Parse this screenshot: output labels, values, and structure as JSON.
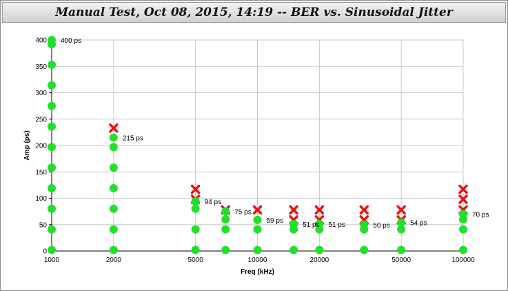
{
  "window": {
    "title": "Manual Test, Oct 08, 2015, 14:19 -- BER vs. Sinusoidal Jitter"
  },
  "colors": {
    "pass": "#22e02a",
    "fail": "#f01010",
    "grid": "#c8c8c8",
    "axis": "#000000"
  },
  "chart_data": {
    "type": "scatter",
    "title": "Manual Test, Oct 08, 2015, 14:19 -- BER vs. Sinusoidal Jitter",
    "xlabel": "Freq (kHz)",
    "ylabel": "Amp (ps)",
    "xscale": "log",
    "xlim": [
      1000,
      100000
    ],
    "ylim": [
      0,
      400
    ],
    "grid": true,
    "x_ticks": [
      1000,
      2000,
      5000,
      10000,
      20000,
      50000,
      100000
    ],
    "y_ticks": [
      0,
      50,
      100,
      150,
      200,
      250,
      300,
      350,
      400
    ],
    "series": [
      {
        "kind": "pass",
        "points": [
          [
            1000,
            2
          ],
          [
            1000,
            41
          ],
          [
            1000,
            80
          ],
          [
            1000,
            119
          ],
          [
            1000,
            158
          ],
          [
            1000,
            197
          ],
          [
            1000,
            236
          ],
          [
            1000,
            275
          ],
          [
            1000,
            314
          ],
          [
            1000,
            353
          ],
          [
            1000,
            392
          ],
          [
            1000,
            400
          ],
          [
            2000,
            2
          ],
          [
            2000,
            41
          ],
          [
            2000,
            80
          ],
          [
            2000,
            119
          ],
          [
            2000,
            158
          ],
          [
            2000,
            197
          ],
          [
            2000,
            215
          ],
          [
            5000,
            2
          ],
          [
            5000,
            41
          ],
          [
            5000,
            80
          ],
          [
            5000,
            94
          ],
          [
            7000,
            2
          ],
          [
            7000,
            41
          ],
          [
            7000,
            60
          ],
          [
            7000,
            75
          ],
          [
            10000,
            2
          ],
          [
            10000,
            41
          ],
          [
            10000,
            59
          ],
          [
            15000,
            2
          ],
          [
            15000,
            41
          ],
          [
            15000,
            51
          ],
          [
            20000,
            2
          ],
          [
            20000,
            41
          ],
          [
            20000,
            51
          ],
          [
            33000,
            2
          ],
          [
            33000,
            41
          ],
          [
            33000,
            50
          ],
          [
            50000,
            2
          ],
          [
            50000,
            41
          ],
          [
            50000,
            54
          ],
          [
            100000,
            2
          ],
          [
            100000,
            41
          ],
          [
            100000,
            60
          ],
          [
            100000,
            70
          ]
        ]
      },
      {
        "kind": "fail",
        "points": [
          [
            2000,
            233
          ],
          [
            5000,
            117
          ],
          [
            5000,
            98
          ],
          [
            7000,
            78
          ],
          [
            10000,
            78
          ],
          [
            15000,
            78
          ],
          [
            15000,
            59
          ],
          [
            20000,
            78
          ],
          [
            20000,
            59
          ],
          [
            33000,
            78
          ],
          [
            33000,
            59
          ],
          [
            50000,
            78
          ],
          [
            50000,
            59
          ],
          [
            100000,
            117
          ],
          [
            100000,
            98
          ],
          [
            100000,
            78
          ]
        ]
      }
    ],
    "annotations": [
      {
        "x": 1000,
        "y": 400,
        "text": "400 ps"
      },
      {
        "x": 2000,
        "y": 215,
        "text": "215 ps"
      },
      {
        "x": 5000,
        "y": 94,
        "text": "94 ps"
      },
      {
        "x": 7000,
        "y": 75,
        "text": "75 ps"
      },
      {
        "x": 10000,
        "y": 59,
        "text": "59 ps"
      },
      {
        "x": 15000,
        "y": 51,
        "text": "51 ps"
      },
      {
        "x": 20000,
        "y": 51,
        "text": "51 ps"
      },
      {
        "x": 33000,
        "y": 50,
        "text": "50 ps"
      },
      {
        "x": 50000,
        "y": 54,
        "text": "54 ps"
      },
      {
        "x": 100000,
        "y": 70,
        "text": "70 ps"
      }
    ]
  }
}
